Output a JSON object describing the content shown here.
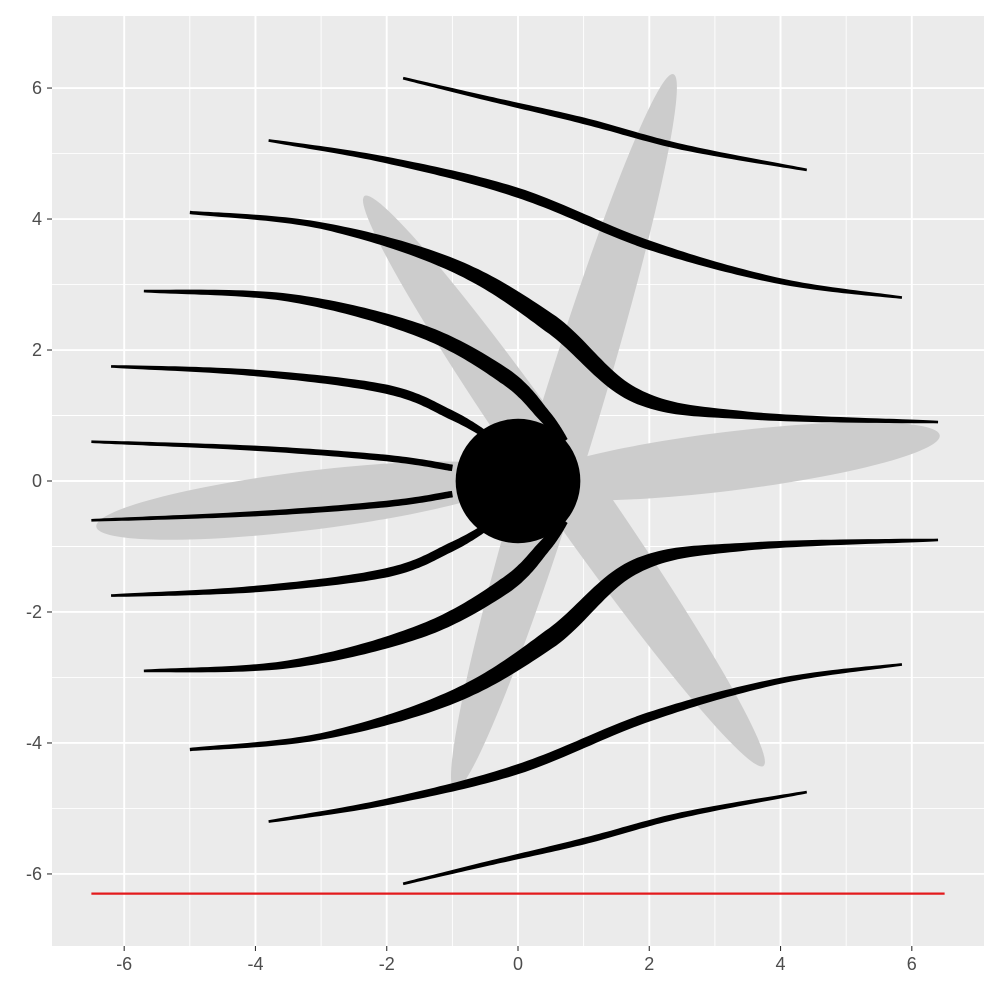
{
  "chart_data": {
    "type": "line",
    "title": "",
    "xlabel": "",
    "ylabel": "",
    "xlim": [
      -7.1,
      7.1
    ],
    "ylim": [
      -7.1,
      7.1
    ],
    "x_ticks": [
      -6,
      -4,
      -2,
      0,
      2,
      4,
      6
    ],
    "y_ticks": [
      -6,
      -4,
      -2,
      0,
      2,
      4,
      6
    ],
    "x_tick_labels": [
      "-6",
      "-4",
      "-2",
      "0",
      "2",
      "4",
      "6"
    ],
    "y_tick_labels": [
      "-6",
      "-4",
      "-2",
      "0",
      "2",
      "4",
      "6"
    ],
    "grid": true,
    "legend": "none",
    "colors": {
      "panel": "#ebebeb",
      "grid": "#ffffff",
      "ellipse": "#cccccc",
      "stroke": "#000000",
      "reference_line": "#e31a1c"
    },
    "ellipses": [
      {
        "cx": -3.2,
        "cy": -0.3,
        "rx": 3.25,
        "ry": 0.45,
        "angle_deg": 7
      },
      {
        "cx": 3.2,
        "cy": 0.3,
        "rx": 3.25,
        "ry": 0.45,
        "angle_deg": 7
      },
      {
        "cx": 0.7,
        "cy": 0.75,
        "rx": 5.7,
        "ry": 0.45,
        "angle_deg": 73
      },
      {
        "cx": 0.7,
        "cy": 0.0,
        "rx": 5.3,
        "ry": 0.45,
        "angle_deg": -55
      }
    ],
    "central_blob": {
      "cx": 0.0,
      "cy": 0.0,
      "rx": 0.95,
      "ry": 0.95
    },
    "series": [
      {
        "x": [
          -1.75,
          -0.5,
          1.0,
          2.5,
          4.4
        ],
        "y": [
          6.15,
          5.85,
          5.5,
          5.1,
          4.75
        ],
        "width": [
          0.04,
          0.07,
          0.1,
          0.09,
          0.04
        ]
      },
      {
        "x": [
          -3.8,
          -2.0,
          0.0,
          2.0,
          4.0,
          5.85
        ],
        "y": [
          5.2,
          4.9,
          4.4,
          3.6,
          3.05,
          2.8
        ],
        "width": [
          0.04,
          0.1,
          0.15,
          0.14,
          0.09,
          0.04
        ]
      },
      {
        "x": [
          -5.0,
          -3.0,
          -1.0,
          0.5,
          1.8,
          3.5,
          6.4
        ],
        "y": [
          4.1,
          3.9,
          3.3,
          2.4,
          1.3,
          1.0,
          0.9
        ],
        "width": [
          0.05,
          0.1,
          0.2,
          0.28,
          0.22,
          0.12,
          0.04
        ]
      },
      {
        "x": [
          -5.7,
          -3.5,
          -1.5,
          -0.2,
          0.4,
          0.7
        ],
        "y": [
          2.9,
          2.8,
          2.3,
          1.6,
          1.0,
          0.6
        ],
        "width": [
          0.04,
          0.12,
          0.2,
          0.24,
          0.2,
          0.14
        ]
      },
      {
        "x": [
          -6.2,
          -4.0,
          -2.0,
          -1.0,
          -0.4
        ],
        "y": [
          1.75,
          1.65,
          1.4,
          1.0,
          0.65
        ],
        "width": [
          0.04,
          0.1,
          0.14,
          0.14,
          0.1
        ]
      },
      {
        "x": [
          -6.5,
          -4.0,
          -2.0,
          -1.0
        ],
        "y": [
          0.6,
          0.5,
          0.35,
          0.2
        ],
        "width": [
          0.04,
          0.08,
          0.1,
          0.1
        ]
      },
      {
        "x": [
          -6.5,
          -4.0,
          -2.0,
          -1.0
        ],
        "y": [
          -0.6,
          -0.5,
          -0.35,
          -0.2
        ],
        "width": [
          0.04,
          0.08,
          0.1,
          0.1
        ]
      },
      {
        "x": [
          -6.2,
          -4.0,
          -2.0,
          -1.0,
          -0.4
        ],
        "y": [
          -1.75,
          -1.65,
          -1.4,
          -1.0,
          -0.65
        ],
        "width": [
          0.04,
          0.1,
          0.14,
          0.14,
          0.1
        ]
      },
      {
        "x": [
          -5.7,
          -3.5,
          -1.5,
          -0.2,
          0.4,
          0.7
        ],
        "y": [
          -2.9,
          -2.8,
          -2.3,
          -1.6,
          -1.0,
          -0.6
        ],
        "width": [
          0.04,
          0.12,
          0.2,
          0.24,
          0.2,
          0.14
        ]
      },
      {
        "x": [
          -5.0,
          -3.0,
          -1.0,
          0.5,
          1.8,
          3.5,
          6.4
        ],
        "y": [
          -4.1,
          -3.9,
          -3.3,
          -2.4,
          -1.3,
          -1.0,
          -0.9
        ],
        "width": [
          0.05,
          0.1,
          0.2,
          0.28,
          0.22,
          0.12,
          0.04
        ]
      },
      {
        "x": [
          -3.8,
          -2.0,
          0.0,
          2.0,
          4.0,
          5.85
        ],
        "y": [
          -5.2,
          -4.9,
          -4.4,
          -3.6,
          -3.05,
          -2.8
        ],
        "width": [
          0.04,
          0.1,
          0.15,
          0.14,
          0.09,
          0.04
        ]
      },
      {
        "x": [
          -1.75,
          -0.5,
          1.0,
          2.5,
          4.4
        ],
        "y": [
          -6.15,
          -5.85,
          -5.5,
          -5.1,
          -4.75
        ],
        "width": [
          0.04,
          0.07,
          0.1,
          0.09,
          0.04
        ]
      }
    ],
    "reference_line": {
      "y": -6.3,
      "x_start": -6.5,
      "x_end": 6.5
    }
  }
}
